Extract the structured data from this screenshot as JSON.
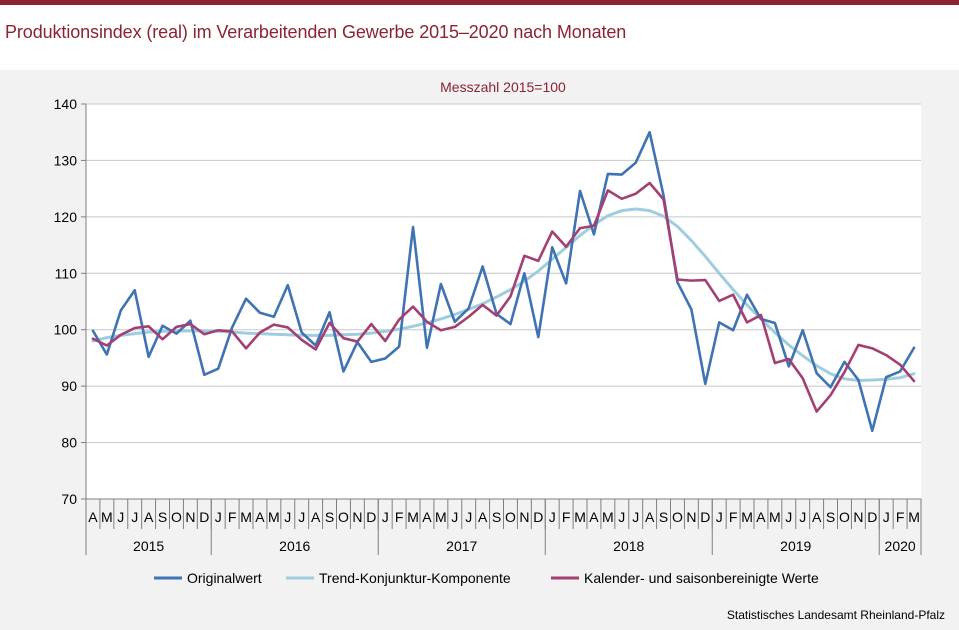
{
  "title": "Produktionsindex (real) im Verarbeitenden Gewerbe 2015–2020 nach Monaten",
  "source": "Statistisches Landesamt Rheinland-Pfalz",
  "colors": {
    "accent": "#8b2332",
    "series": [
      "#3f73b3",
      "#9fcde0",
      "#a43f72"
    ]
  },
  "chart_data": {
    "type": "line",
    "subtitle": "Messzahl 2015=100",
    "ylim": [
      70,
      140
    ],
    "yticks": [
      70,
      80,
      90,
      100,
      110,
      120,
      130,
      140
    ],
    "grid": true,
    "legend": "bottom",
    "month_labels": [
      "A",
      "M",
      "J",
      "J",
      "A",
      "S",
      "O",
      "N",
      "D",
      "J",
      "F",
      "M",
      "A",
      "M",
      "J",
      "J",
      "A",
      "S",
      "O",
      "N",
      "D",
      "J",
      "F",
      "M",
      "A",
      "M",
      "J",
      "J",
      "A",
      "S",
      "O",
      "N",
      "D",
      "J",
      "F",
      "M",
      "A",
      "M",
      "J",
      "J",
      "A",
      "S",
      "O",
      "N",
      "D",
      "J",
      "F",
      "M",
      "A",
      "M",
      "J",
      "J",
      "A",
      "S",
      "O",
      "N",
      "D",
      "J",
      "F",
      "M"
    ],
    "years": [
      {
        "label": "2015",
        "start": 0,
        "count": 9
      },
      {
        "label": "2016",
        "start": 9,
        "count": 12
      },
      {
        "label": "2017",
        "start": 21,
        "count": 12
      },
      {
        "label": "2018",
        "start": 33,
        "count": 12
      },
      {
        "label": "2019",
        "start": 45,
        "count": 12
      },
      {
        "label": "2020",
        "start": 57,
        "count": 3
      }
    ],
    "series": [
      {
        "name": "Originalwert",
        "values": [
          99.8,
          95.6,
          103.4,
          107,
          95.2,
          100.7,
          99.3,
          101.6,
          92,
          93.1,
          100.4,
          105.5,
          103,
          102.3,
          107.9,
          99.5,
          97.2,
          103.1,
          92.6,
          97.8,
          94.3,
          94.9,
          97,
          118.2,
          96.8,
          108.1,
          101.4,
          103.8,
          111.2,
          102.8,
          101,
          110,
          98.7,
          114.6,
          108.2,
          124.6,
          116.9,
          127.6,
          127.5,
          129.6,
          135,
          123.8,
          108.4,
          103.6,
          90.4,
          101.3,
          99.9,
          106.2,
          101.9,
          101.2,
          93.5,
          99.9,
          92.3,
          89.8,
          94.3,
          91.1,
          82.1,
          91.6,
          92.6,
          96.8
        ]
      },
      {
        "name": "Trend-Konjunktur-Komponente",
        "values": [
          98,
          98.6,
          99,
          99.3,
          99.6,
          99.7,
          99.8,
          99.8,
          99.8,
          99.7,
          99.6,
          99.4,
          99.3,
          99.2,
          99.1,
          99,
          99,
          99,
          99.1,
          99.2,
          99.4,
          99.7,
          100.1,
          100.6,
          101.2,
          101.9,
          102.7,
          103.6,
          104.6,
          105.8,
          107.1,
          108.6,
          110.4,
          112.5,
          114.6,
          116.7,
          118.6,
          120.2,
          121.1,
          121.4,
          121.1,
          120.1,
          118.3,
          115.8,
          113,
          110,
          107.1,
          104.4,
          101.9,
          99.5,
          97.3,
          95.4,
          93.6,
          92.2,
          91.3,
          91,
          91.1,
          91.2,
          91.5,
          92.2
        ]
      },
      {
        "name": "Kalender- und saisonbereinigte Werte",
        "values": [
          98.4,
          97.2,
          99.1,
          100.3,
          100.6,
          98.3,
          100.5,
          101,
          99.2,
          99.9,
          99.7,
          96.7,
          99.5,
          100.9,
          100.4,
          98.2,
          96.5,
          101.2,
          98.5,
          97.9,
          101,
          98,
          101.8,
          104.1,
          101.4,
          99.9,
          100.5,
          102.3,
          104.4,
          102.5,
          105.9,
          113.1,
          112.2,
          117.4,
          114.7,
          118,
          118.4,
          124.7,
          123.2,
          124.1,
          126,
          123.1,
          108.9,
          108.7,
          108.8,
          105.1,
          106.2,
          101.3,
          102.6,
          94.1,
          94.8,
          91.4,
          85.5,
          88.4,
          92.5,
          97.3,
          96.7,
          95.5,
          93.8,
          90.9
        ]
      }
    ]
  }
}
